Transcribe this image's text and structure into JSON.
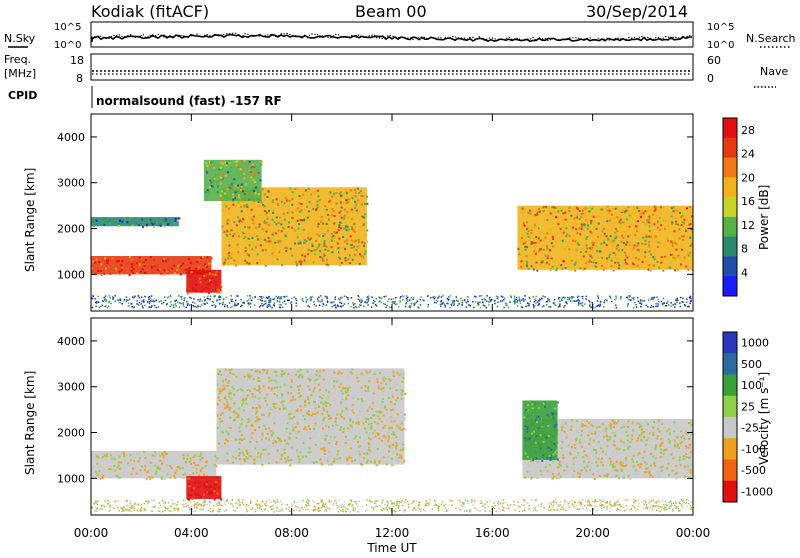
{
  "header": {
    "site": "Kodiak (fitACF)",
    "beam": "Beam 00",
    "date": "30/Sep/2014"
  },
  "status_panels": {
    "nsky_label": "N.Sky",
    "nsearch_label": "N.Search",
    "freq_label": "Freq.",
    "freq_unit": "[MHz]",
    "nave_label": "Nave",
    "cpid_label": "CPID",
    "cpid_text": "normalsound (fast) -157 RF",
    "noise_ticks": [
      "10^5",
      "10^0"
    ],
    "freq_ticks": [
      "18",
      "8"
    ],
    "nave_ticks": [
      "60",
      "0"
    ]
  },
  "colors": {
    "power": [
      "#1a1aff",
      "#1f4fa6",
      "#2a8a6e",
      "#56b04a",
      "#c8d42a",
      "#f2b21c",
      "#f07a16",
      "#e83a12",
      "#e01010"
    ],
    "velocity": [
      "#e01010",
      "#f06414",
      "#f0a020",
      "#c8c8c8",
      "#8ed04a",
      "#3aa03a",
      "#2a6aa0",
      "#2838b8"
    ]
  },
  "chart_data": [
    {
      "type": "heatmap",
      "title": "Power",
      "xlabel": "Time UT",
      "ylabel": "Slant Range [km]",
      "x_ticks": [
        "00:00",
        "04:00",
        "08:00",
        "12:00",
        "16:00",
        "20:00",
        "00:00"
      ],
      "y_ticks": [
        "1000",
        "2000",
        "3000",
        "4000"
      ],
      "ylim": [
        200,
        4500
      ],
      "colorbar": {
        "label": "Power [dB]",
        "ticks": [
          "4",
          "8",
          "12",
          "16",
          "20",
          "24",
          "28"
        ],
        "range": [
          0,
          30
        ]
      },
      "regions": [
        {
          "t_start": 0.0,
          "t_end": 4.8,
          "range_lo": 1000,
          "range_hi": 1400,
          "value": 26
        },
        {
          "t_start": 3.8,
          "t_end": 5.2,
          "range_lo": 600,
          "range_hi": 1100,
          "value": 27
        },
        {
          "t_start": 0.0,
          "t_end": 3.5,
          "range_lo": 2050,
          "range_hi": 2250,
          "value": 9
        },
        {
          "t_start": 5.2,
          "t_end": 11.0,
          "range_lo": 1200,
          "range_hi": 2900,
          "value": 17
        },
        {
          "t_start": 4.5,
          "t_end": 6.8,
          "range_lo": 2600,
          "range_hi": 3500,
          "value": 13
        },
        {
          "t_start": 17.0,
          "t_end": 24.0,
          "range_lo": 1100,
          "range_hi": 2500,
          "value": 18
        }
      ]
    },
    {
      "type": "heatmap",
      "title": "Velocity",
      "xlabel": "Time UT",
      "ylabel": "Slant Range [km]",
      "x_ticks": [
        "00:00",
        "04:00",
        "08:00",
        "12:00",
        "16:00",
        "20:00",
        "00:00"
      ],
      "y_ticks": [
        "1000",
        "2000",
        "3000",
        "4000"
      ],
      "ylim": [
        200,
        4500
      ],
      "colorbar": {
        "label": "Velocity [m s⁻¹]",
        "ticks": [
          "1000",
          "500",
          "100",
          "25",
          "-25",
          "-100",
          "-500",
          "-1000"
        ]
      },
      "regions": [
        {
          "t_start": 0.0,
          "t_end": 5.0,
          "range_lo": 1000,
          "range_hi": 1600,
          "value": 0
        },
        {
          "t_start": 3.8,
          "t_end": 5.2,
          "range_lo": 550,
          "range_hi": 1050,
          "value": -600
        },
        {
          "t_start": 5.0,
          "t_end": 12.5,
          "range_lo": 1300,
          "range_hi": 3400,
          "value": 0
        },
        {
          "t_start": 17.2,
          "t_end": 24.0,
          "range_lo": 1000,
          "range_hi": 2300,
          "value": 0
        },
        {
          "t_start": 17.2,
          "t_end": 18.6,
          "range_lo": 1400,
          "range_hi": 2700,
          "value": 150
        }
      ]
    }
  ]
}
